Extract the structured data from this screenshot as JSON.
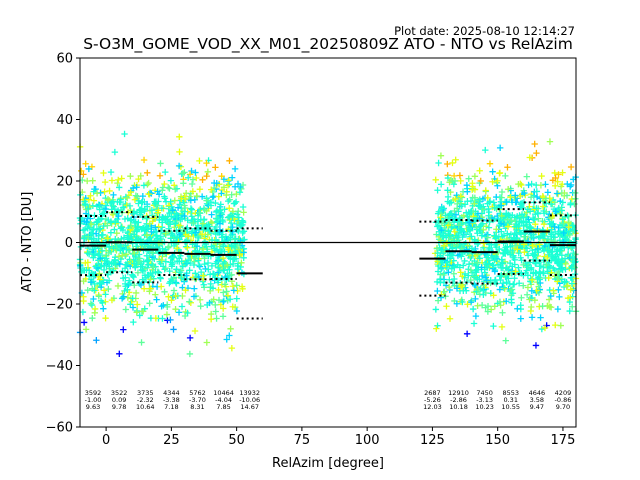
{
  "plot_date": "Plot date: 2025-08-10 12:14:27",
  "chart_data": {
    "type": "scatter",
    "title": "S-O3M_GOME_VOD_XX_M01_20250809Z ATO - NTO vs RelAzim",
    "xlabel": "RelAzim [degree]",
    "ylabel": "ATO - NTO [DU]",
    "xlim": [
      -10,
      180
    ],
    "ylim": [
      -60,
      60
    ],
    "xticks": [
      0,
      25,
      50,
      75,
      100,
      125,
      150,
      175
    ],
    "yticks": [
      -60,
      -40,
      -20,
      0,
      20,
      40,
      60
    ],
    "grid": false,
    "zero_line": 0,
    "marker": "+",
    "colormap": [
      "#0000ff",
      "#00a0ff",
      "#00d4ff",
      "#1affd5",
      "#5dff9a",
      "#a0ff56",
      "#e4ff13",
      "#ffd400",
      "#ffb000"
    ],
    "point_ranges": [
      {
        "xmin": -10,
        "xmax": 53,
        "ymin": -45,
        "ymax": 45
      },
      {
        "xmin": 126,
        "xmax": 180,
        "ymin": -45,
        "ymax": 53
      }
    ],
    "bins": [
      {
        "x0": -10,
        "x1": 0,
        "n": "3592",
        "mean": "-1.00",
        "std": "9.63"
      },
      {
        "x0": 0,
        "x1": 10,
        "n": "3522",
        "mean": "0.09",
        "std": "9.78"
      },
      {
        "x0": 10,
        "x1": 20,
        "n": "3735",
        "mean": "-2.32",
        "std": "10.64"
      },
      {
        "x0": 20,
        "x1": 30,
        "n": "4344",
        "mean": "-3.38",
        "std": "7.18"
      },
      {
        "x0": 30,
        "x1": 40,
        "n": "5762",
        "mean": "-3.70",
        "std": "8.31"
      },
      {
        "x0": 40,
        "x1": 50,
        "n": "10464",
        "mean": "-4.04",
        "std": "7.85"
      },
      {
        "x0": 50,
        "x1": 60,
        "n": "13932",
        "mean": "-10.06",
        "std": "14.67"
      },
      {
        "x0": 120,
        "x1": 130,
        "n": "2687",
        "mean": "-5.26",
        "std": "12.03"
      },
      {
        "x0": 130,
        "x1": 140,
        "n": "12910",
        "mean": "-2.86",
        "std": "10.18"
      },
      {
        "x0": 140,
        "x1": 150,
        "n": "7450",
        "mean": "-3.13",
        "std": "10.23"
      },
      {
        "x0": 150,
        "x1": 160,
        "n": "8553",
        "mean": "0.31",
        "std": "10.55"
      },
      {
        "x0": 160,
        "x1": 170,
        "n": "4646",
        "mean": "3.58",
        "std": "9.47"
      },
      {
        "x0": 170,
        "x1": 180,
        "n": "4209",
        "mean": "-0.86",
        "std": "9.70"
      }
    ]
  }
}
